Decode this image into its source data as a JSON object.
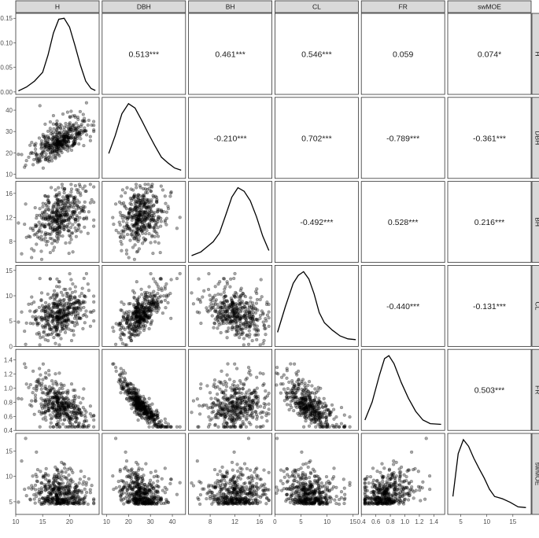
{
  "chart_data": {
    "type": "scatter-matrix",
    "variables": [
      "H",
      "DBH",
      "BH",
      "CL",
      "FR",
      "swMOE"
    ],
    "axis_ranges": {
      "H": [
        10,
        25.5
      ],
      "DBH": [
        8,
        46
      ],
      "BH": [
        4.5,
        18
      ],
      "CL": [
        0,
        16
      ],
      "FR": [
        0.4,
        1.55
      ],
      "swMOE": [
        2.5,
        18.5
      ]
    },
    "ticks": {
      "H": [
        10,
        15,
        20
      ],
      "DBH": [
        10,
        20,
        30,
        40
      ],
      "BH": [
        8,
        12,
        16
      ],
      "CL": [
        0,
        5,
        10,
        15
      ],
      "FR": [
        0.4,
        0.6,
        0.8,
        1.0,
        1.2,
        1.4
      ],
      "swMOE": [
        5,
        10,
        15
      ]
    },
    "ticks_labels": {
      "H": [
        "10",
        "15",
        "20"
      ],
      "DBH": [
        "10",
        "20",
        "30",
        "40"
      ],
      "BH": [
        "8",
        "12",
        "16"
      ],
      "CL": [
        "0",
        "5",
        "10",
        "15"
      ],
      "FR": [
        "0.4",
        "0.6",
        "0.8",
        "1.0",
        "1.2",
        "1.4"
      ],
      "swMOE": [
        "5",
        "10",
        "15"
      ]
    },
    "diag_y_ticks": [
      0.0,
      0.05,
      0.1,
      0.15
    ],
    "diag_y_tick_labels": [
      "0.00",
      "0.05",
      "0.10",
      "0.15"
    ],
    "diag_y_range": [
      -0.005,
      0.16
    ],
    "correlations": [
      {
        "row": 0,
        "col": 1,
        "text": "0.513***"
      },
      {
        "row": 0,
        "col": 2,
        "text": "0.461***"
      },
      {
        "row": 0,
        "col": 3,
        "text": "0.546***"
      },
      {
        "row": 0,
        "col": 4,
        "text": "0.059"
      },
      {
        "row": 0,
        "col": 5,
        "text": "0.074*"
      },
      {
        "row": 1,
        "col": 2,
        "text": "-0.210***"
      },
      {
        "row": 1,
        "col": 3,
        "text": "0.702***"
      },
      {
        "row": 1,
        "col": 4,
        "text": "-0.789***"
      },
      {
        "row": 1,
        "col": 5,
        "text": "-0.361***"
      },
      {
        "row": 2,
        "col": 3,
        "text": "-0.492***"
      },
      {
        "row": 2,
        "col": 4,
        "text": "0.528***"
      },
      {
        "row": 2,
        "col": 5,
        "text": "0.216***"
      },
      {
        "row": 3,
        "col": 4,
        "text": "-0.440***"
      },
      {
        "row": 3,
        "col": 5,
        "text": "-0.131***"
      },
      {
        "row": 4,
        "col": 5,
        "text": "0.503***"
      }
    ],
    "densities": {
      "H": [
        [
          10.5,
          0.002
        ],
        [
          12,
          0.01
        ],
        [
          13.5,
          0.022
        ],
        [
          15,
          0.04
        ],
        [
          16,
          0.075
        ],
        [
          17,
          0.12
        ],
        [
          18,
          0.148
        ],
        [
          19,
          0.15
        ],
        [
          20,
          0.132
        ],
        [
          21,
          0.095
        ],
        [
          22,
          0.055
        ],
        [
          23,
          0.022
        ],
        [
          24,
          0.007
        ],
        [
          24.8,
          0.003
        ]
      ],
      "DBH": [
        [
          11,
          0.3
        ],
        [
          14,
          0.55
        ],
        [
          17,
          0.85
        ],
        [
          20,
          0.99
        ],
        [
          23,
          0.93
        ],
        [
          26,
          0.76
        ],
        [
          29,
          0.58
        ],
        [
          32,
          0.41
        ],
        [
          35,
          0.25
        ],
        [
          38,
          0.17
        ],
        [
          41,
          0.1
        ],
        [
          44,
          0.07
        ]
      ],
      "BH": [
        [
          5,
          0.05
        ],
        [
          6.5,
          0.1
        ],
        [
          7.5,
          0.17
        ],
        [
          8.5,
          0.24
        ],
        [
          9.5,
          0.36
        ],
        [
          10.5,
          0.6
        ],
        [
          11.5,
          0.85
        ],
        [
          12.5,
          0.98
        ],
        [
          13.5,
          0.93
        ],
        [
          14.5,
          0.8
        ],
        [
          15.5,
          0.58
        ],
        [
          16.5,
          0.32
        ],
        [
          17.5,
          0.12
        ]
      ],
      "CL": [
        [
          0.5,
          0.15
        ],
        [
          2,
          0.5
        ],
        [
          3.5,
          0.82
        ],
        [
          4.5,
          0.93
        ],
        [
          5.5,
          0.98
        ],
        [
          6.5,
          0.88
        ],
        [
          7.5,
          0.68
        ],
        [
          8.5,
          0.42
        ],
        [
          9.5,
          0.28
        ],
        [
          11,
          0.18
        ],
        [
          12.5,
          0.1
        ],
        [
          14,
          0.06
        ],
        [
          15.5,
          0.05
        ]
      ],
      "FR": [
        [
          0.45,
          0.1
        ],
        [
          0.55,
          0.35
        ],
        [
          0.65,
          0.72
        ],
        [
          0.72,
          0.95
        ],
        [
          0.78,
          0.99
        ],
        [
          0.85,
          0.88
        ],
        [
          0.95,
          0.62
        ],
        [
          1.05,
          0.4
        ],
        [
          1.15,
          0.22
        ],
        [
          1.25,
          0.1
        ],
        [
          1.35,
          0.05
        ],
        [
          1.5,
          0.04
        ]
      ],
      "swMOE": [
        [
          3.5,
          0.2
        ],
        [
          4.5,
          0.78
        ],
        [
          5.5,
          0.97
        ],
        [
          6.5,
          0.88
        ],
        [
          7.5,
          0.72
        ],
        [
          8.5,
          0.58
        ],
        [
          9.5,
          0.45
        ],
        [
          10.5,
          0.3
        ],
        [
          11.5,
          0.2
        ],
        [
          13,
          0.17
        ],
        [
          14.5,
          0.12
        ],
        [
          16,
          0.06
        ],
        [
          17.5,
          0.05
        ]
      ]
    },
    "points_per_panel": 420
  }
}
